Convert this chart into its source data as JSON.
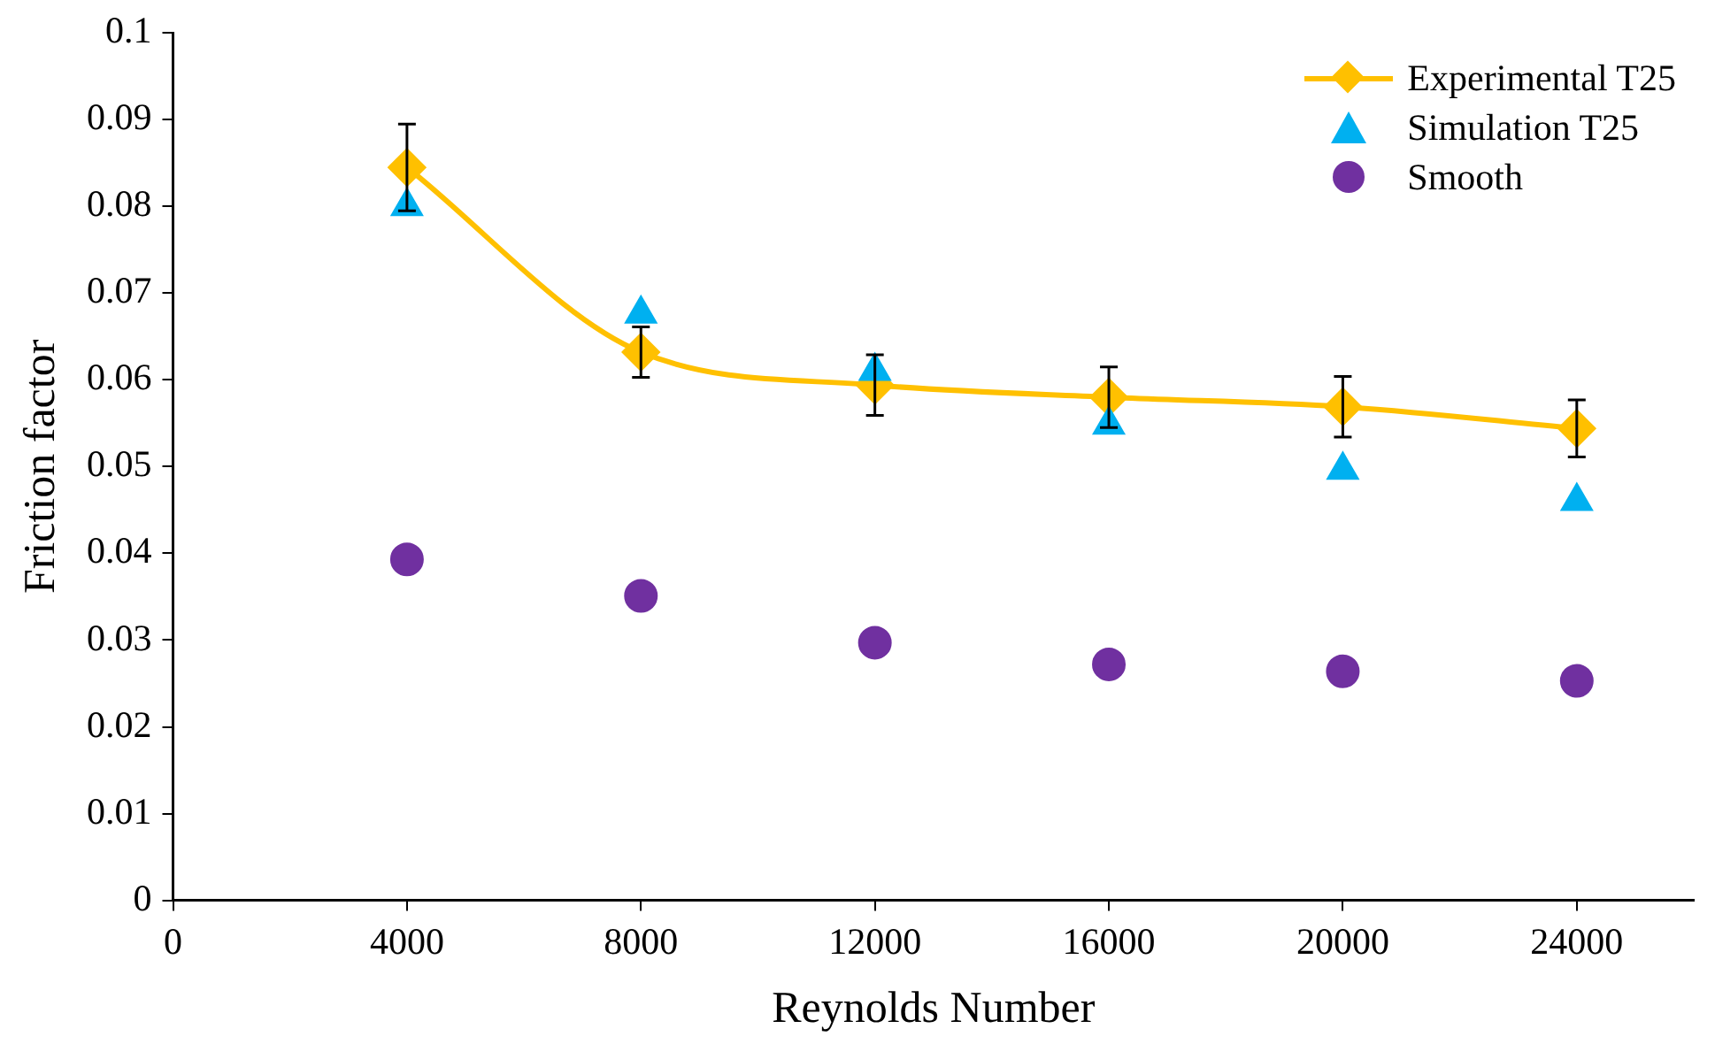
{
  "chart_data": {
    "type": "scatter",
    "xlabel": "Reynolds Number",
    "ylabel": "Friction factor",
    "x": [
      4000,
      8000,
      12000,
      16000,
      20000,
      24000
    ],
    "series": [
      {
        "name": "Experimental T25",
        "type": "line",
        "color": "#ffc000",
        "marker": "diamond",
        "line_style": "solid",
        "values": [
          0.0845,
          0.0632,
          0.0594,
          0.058,
          0.0569,
          0.0544
        ],
        "errors": [
          0.005,
          0.0029,
          0.0035,
          0.0035,
          0.0035,
          0.0033
        ]
      },
      {
        "name": "Simulation T25",
        "color": "#00b0f0",
        "marker": "triangle",
        "values": [
          0.08,
          0.0676,
          0.061,
          0.0548,
          0.0496,
          0.046
        ]
      },
      {
        "name": "Smooth",
        "color": "#7030a0",
        "marker": "circle",
        "values": [
          0.0393,
          0.0351,
          0.0297,
          0.0272,
          0.0264,
          0.0253
        ]
      }
    ],
    "xlim": [
      0,
      26000
    ],
    "xticks": [
      0,
      4000,
      8000,
      12000,
      16000,
      20000,
      24000
    ],
    "ylim": [
      0,
      0.1
    ],
    "yticks": [
      0,
      0.01,
      0.02,
      0.03,
      0.04,
      0.05,
      0.06,
      0.07,
      0.08,
      0.09,
      0.1
    ],
    "grid": false,
    "legend": "top right"
  }
}
